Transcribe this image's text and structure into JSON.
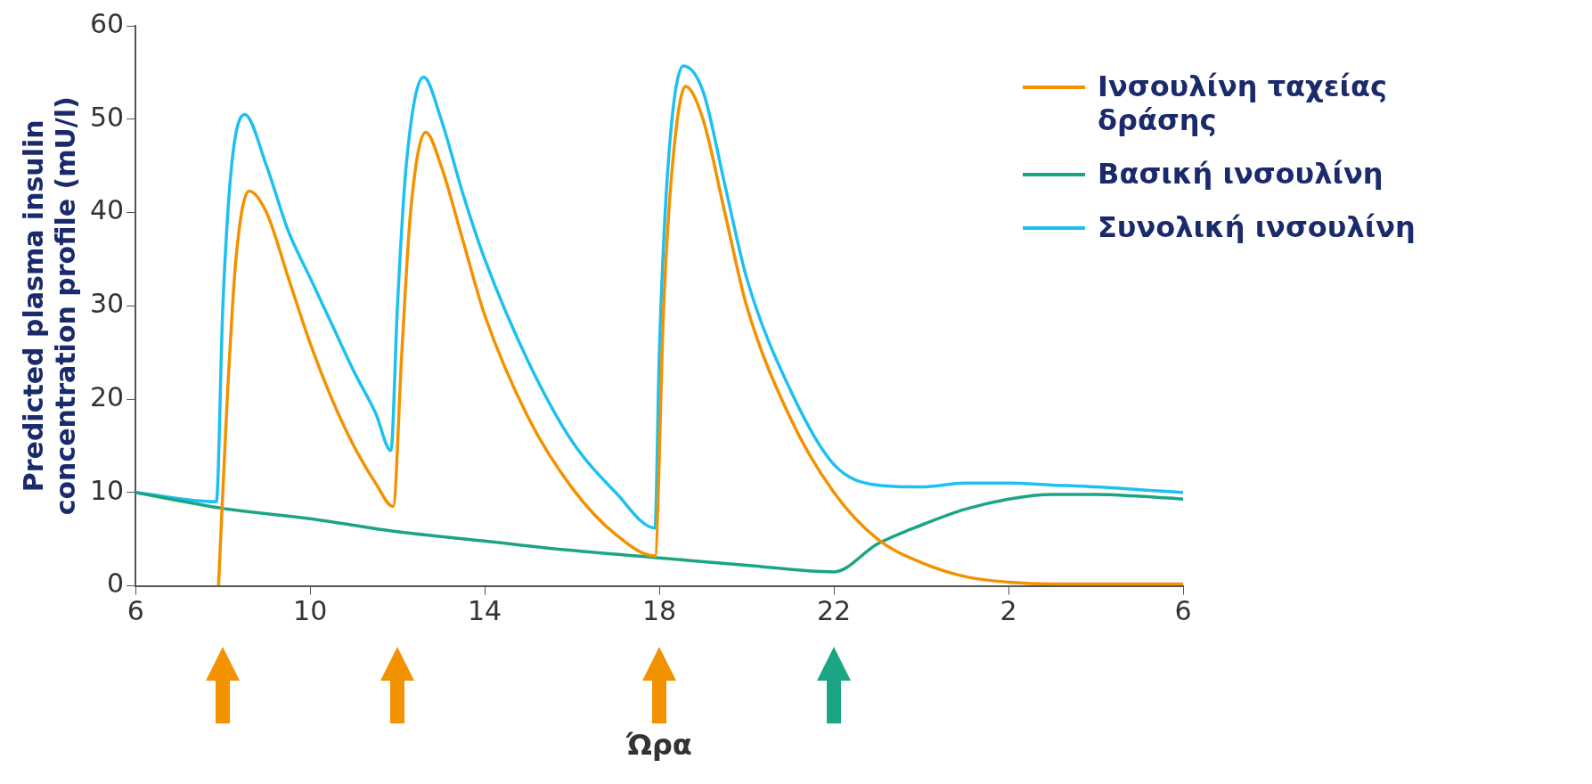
{
  "chart_data": {
    "type": "line",
    "xlabel": "Ώρα",
    "ylabel": "Predicted plasma insulin concentration profile (mU/l)",
    "xlim": [
      "--01-01T06:00",
      "--01-02T06:00"
    ],
    "xticks": [
      {
        "value": "--01-01T06:00",
        "label": "6"
      },
      {
        "value": "--01-01T10:00",
        "label": "10"
      },
      {
        "value": "--01-01T14:00",
        "label": "14"
      },
      {
        "value": "--01-01T18:00",
        "label": "18"
      },
      {
        "value": "--01-01T22:00",
        "label": "22"
      },
      {
        "value": "--01-02T02:00",
        "label": "2"
      },
      {
        "value": "--01-02T06:00",
        "label": "6"
      }
    ],
    "ylim": [
      0,
      60
    ],
    "yticks": [
      0,
      10,
      20,
      30,
      40,
      50,
      60
    ],
    "grid": false,
    "legend": "top right",
    "marker": "none",
    "line_style": "solid",
    "series": [
      {
        "name": "Ινσουλίνη ταχείας δράσης",
        "color": "#f39200",
        "x": [
          "--01-01T07:54",
          "--01-01T08:06",
          "--01-01T08:18",
          "--01-01T08:36",
          "--01-01T09:00",
          "--01-01T09:30",
          "--01-01T10:00",
          "--01-01T10:30",
          "--01-01T11:00",
          "--01-01T11:30",
          "--01-01T11:54",
          "--01-01T12:06",
          "--01-01T12:18",
          "--01-01T12:39",
          "--01-01T13:00",
          "--01-01T13:30",
          "--01-01T14:00",
          "--01-01T15:00",
          "--01-01T16:00",
          "--01-01T17:00",
          "--01-01T17:54",
          "--01-01T18:06",
          "--01-01T18:18",
          "--01-01T18:36",
          "--01-01T19:00",
          "--01-01T19:30",
          "--01-01T20:00",
          "--01-01T21:00",
          "--01-01T22:00",
          "--01-01T23:00",
          "--01-02T00:00",
          "--01-02T01:00",
          "--01-02T02:00",
          "--01-02T03:00",
          "--01-02T06:00"
        ],
        "values": [
          0,
          20,
          35,
          42.3,
          40,
          33,
          26,
          20,
          15,
          11,
          8.5,
          25,
          40,
          48.6,
          45,
          37,
          29,
          18,
          10.5,
          5.5,
          3.2,
          30,
          45,
          53.5,
          50,
          40,
          30,
          18,
          10,
          5,
          2.5,
          1,
          0.4,
          0.2,
          0.2
        ]
      },
      {
        "name": "Βασική ινσουλίνη",
        "color": "#1aa585",
        "x": [
          "--01-01T06:00",
          "--01-01T08:00",
          "--01-01T10:00",
          "--01-01T12:00",
          "--01-01T14:00",
          "--01-01T16:00",
          "--01-01T18:00",
          "--01-01T20:00",
          "--01-01T22:00",
          "--01-01T23:00",
          "--01-02T00:00",
          "--01-02T01:00",
          "--01-02T02:00",
          "--01-02T03:00",
          "--01-02T04:00",
          "--01-02T05:00",
          "--01-02T06:00"
        ],
        "values": [
          10,
          8.3,
          7.2,
          5.8,
          4.8,
          3.8,
          3,
          2.2,
          1.5,
          4.5,
          6.5,
          8.2,
          9.3,
          9.8,
          9.8,
          9.6,
          9.3
        ]
      },
      {
        "name": "Συνολική ινσουλίνη",
        "color": "#1ec0f0",
        "x": [
          "--01-01T06:00",
          "--01-01T07:51",
          "--01-01T08:00",
          "--01-01T08:12",
          "--01-01T08:30",
          "--01-01T09:00",
          "--01-01T09:30",
          "--01-01T10:00",
          "--01-01T10:30",
          "--01-01T11:00",
          "--01-01T11:30",
          "--01-01T11:51",
          "--01-01T12:00",
          "--01-01T12:12",
          "--01-01T12:36",
          "--01-01T13:00",
          "--01-01T13:30",
          "--01-01T14:00",
          "--01-01T15:00",
          "--01-01T16:00",
          "--01-01T17:00",
          "--01-01T17:54",
          "--01-01T18:00",
          "--01-01T18:12",
          "--01-01T18:33",
          "--01-01T19:00",
          "--01-01T19:30",
          "--01-01T20:00",
          "--01-01T21:00",
          "--01-01T22:00",
          "--01-01T23:00",
          "--01-02T00:00",
          "--01-02T01:00",
          "--01-02T02:00",
          "--01-02T03:00",
          "--01-02T04:00",
          "--01-02T05:00",
          "--01-02T06:00"
        ],
        "values": [
          10,
          9,
          30,
          45,
          50.5,
          45,
          38,
          33,
          28,
          23,
          18.5,
          14.5,
          30,
          45,
          54.5,
          50,
          42,
          35,
          24,
          15.5,
          10,
          6.2,
          25,
          45,
          55.7,
          53,
          43,
          33,
          21,
          13,
          10.8,
          10.6,
          11,
          11,
          10.8,
          10.6,
          10.3,
          10
        ]
      }
    ]
  }
}
